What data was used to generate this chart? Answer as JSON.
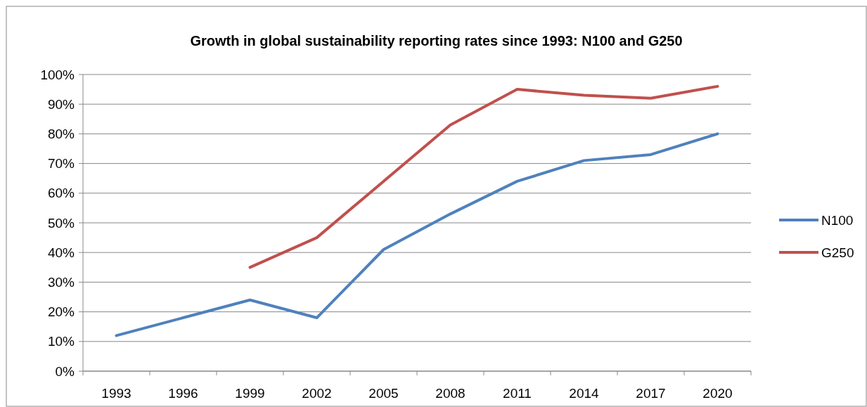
{
  "chart_data": {
    "type": "line",
    "title": "Growth in global sustainability reporting rates since 1993: N100 and G250",
    "categories": [
      "1993",
      "1996",
      "1999",
      "2002",
      "2005",
      "2008",
      "2011",
      "2014",
      "2017",
      "2020"
    ],
    "series": [
      {
        "name": "N100",
        "color": "#4f81bd",
        "values": [
          12,
          18,
          24,
          18,
          41,
          53,
          64,
          71,
          73,
          80
        ]
      },
      {
        "name": "G250",
        "color": "#c0504d",
        "values": [
          null,
          null,
          35,
          45,
          64,
          83,
          95,
          93,
          92,
          96
        ]
      }
    ],
    "ylim": [
      0,
      100
    ],
    "yticks": [
      {
        "value": 0,
        "label": "0%"
      },
      {
        "value": 10,
        "label": "10%"
      },
      {
        "value": 20,
        "label": "20%"
      },
      {
        "value": 30,
        "label": "30%"
      },
      {
        "value": 40,
        "label": "40%"
      },
      {
        "value": 50,
        "label": "50%"
      },
      {
        "value": 60,
        "label": "60%"
      },
      {
        "value": 70,
        "label": "70%"
      },
      {
        "value": 80,
        "label": "80%"
      },
      {
        "value": 90,
        "label": "90%"
      },
      {
        "value": 100,
        "label": "100%"
      }
    ],
    "grid": "y",
    "legend": "right",
    "marker": "none",
    "line_style": "solid"
  }
}
